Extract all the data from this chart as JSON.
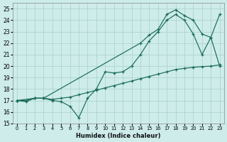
{
  "xlabel": "Humidex (Indice chaleur)",
  "xlim": [
    -0.5,
    23.5
  ],
  "ylim": [
    15,
    25.5
  ],
  "yticks": [
    15,
    16,
    17,
    18,
    19,
    20,
    21,
    22,
    23,
    24,
    25
  ],
  "xticks": [
    0,
    1,
    2,
    3,
    4,
    5,
    6,
    7,
    8,
    9,
    10,
    11,
    12,
    13,
    14,
    15,
    16,
    17,
    18,
    19,
    20,
    21,
    22,
    23
  ],
  "bg_color": "#cdecea",
  "grid_color": "#aed4d1",
  "line_color": "#1a6b5a",
  "line1_x": [
    0,
    1,
    2,
    3,
    4,
    5,
    6,
    7,
    8,
    9,
    10,
    11,
    12,
    13,
    14,
    15,
    16,
    17,
    18,
    19,
    20,
    21,
    22,
    23
  ],
  "line1_y": [
    17,
    16.9,
    17.2,
    17.2,
    17.0,
    16.9,
    16.5,
    15.5,
    17.2,
    18.0,
    19.5,
    19.4,
    19.5,
    20.0,
    21.0,
    22.2,
    23.0,
    24.0,
    24.5,
    24.0,
    22.8,
    21.0,
    22.5,
    20.0
  ],
  "line2_x": [
    0,
    2,
    3,
    14,
    15,
    16,
    17,
    18,
    19,
    20,
    21,
    22,
    23
  ],
  "line2_y": [
    17,
    17.2,
    17.2,
    22.0,
    22.7,
    23.2,
    24.5,
    24.9,
    24.4,
    24.0,
    22.8,
    22.5,
    24.5
  ],
  "line3_x": [
    0,
    1,
    2,
    3,
    4,
    5,
    6,
    7,
    8,
    9,
    10,
    11,
    12,
    13,
    14,
    15,
    16,
    17,
    18,
    19,
    20,
    21,
    22,
    23
  ],
  "line3_y": [
    17,
    17.0,
    17.2,
    17.2,
    17.1,
    17.2,
    17.3,
    17.5,
    17.7,
    17.9,
    18.1,
    18.3,
    18.5,
    18.7,
    18.9,
    19.1,
    19.3,
    19.5,
    19.7,
    19.8,
    19.9,
    19.95,
    20.0,
    20.1
  ]
}
